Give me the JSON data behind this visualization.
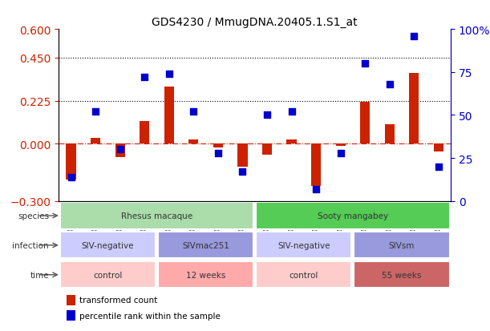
{
  "title": "GDS4230 / MmugDNA.20405.1.S1_at",
  "samples": [
    "GSM742045",
    "GSM742046",
    "GSM742047",
    "GSM742048",
    "GSM742049",
    "GSM742050",
    "GSM742051",
    "GSM742052",
    "GSM742053",
    "GSM742054",
    "GSM742056",
    "GSM742059",
    "GSM742060",
    "GSM742062",
    "GSM742064",
    "GSM742066"
  ],
  "red_values": [
    -0.19,
    0.03,
    -0.07,
    0.12,
    0.3,
    0.02,
    -0.02,
    -0.12,
    -0.06,
    0.02,
    -0.22,
    -0.01,
    0.22,
    0.1,
    0.37,
    -0.04
  ],
  "blue_values": [
    14,
    52,
    30,
    72,
    74,
    52,
    28,
    17,
    50,
    52,
    7,
    28,
    80,
    68,
    96,
    20
  ],
  "ylim_left": [
    -0.3,
    0.6
  ],
  "ylim_right": [
    0,
    100
  ],
  "yticks_left": [
    -0.3,
    0.0,
    0.225,
    0.45,
    0.6
  ],
  "yticks_right": [
    0,
    25,
    50,
    75,
    100
  ],
  "hlines": [
    0.225,
    0.45
  ],
  "bar_color": "#cc2200",
  "dot_color": "#0000cc",
  "species_groups": [
    {
      "label": "Rhesus macaque",
      "start": 0,
      "end": 8,
      "color": "#aaddaa"
    },
    {
      "label": "Sooty mangabey",
      "start": 8,
      "end": 16,
      "color": "#55cc55"
    }
  ],
  "infection_groups": [
    {
      "label": "SIV-negative",
      "start": 0,
      "end": 4,
      "color": "#ccccff"
    },
    {
      "label": "SIVmac251",
      "start": 4,
      "end": 8,
      "color": "#9999dd"
    },
    {
      "label": "SIV-negative",
      "start": 8,
      "end": 12,
      "color": "#ccccff"
    },
    {
      "label": "SIVsm",
      "start": 12,
      "end": 16,
      "color": "#9999dd"
    }
  ],
  "time_groups": [
    {
      "label": "control",
      "start": 0,
      "end": 4,
      "color": "#ffcccc"
    },
    {
      "label": "12 weeks",
      "start": 4,
      "end": 8,
      "color": "#ffaaaa"
    },
    {
      "label": "control",
      "start": 8,
      "end": 12,
      "color": "#ffcccc"
    },
    {
      "label": "55 weeks",
      "start": 12,
      "end": 16,
      "color": "#cc6666"
    }
  ],
  "row_labels": [
    "species",
    "infection",
    "time"
  ],
  "legend_red": "transformed count",
  "legend_blue": "percentile rank within the sample",
  "background_color": "#ffffff",
  "ax_background": "#ffffff",
  "tick_label_color_left": "#cc2200",
  "tick_label_color_right": "#0000cc",
  "bar_width": 0.4,
  "dot_size": 30
}
